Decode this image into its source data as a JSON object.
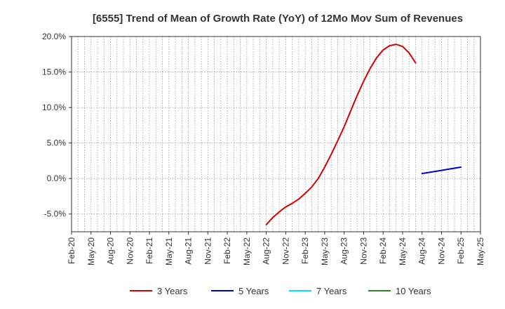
{
  "chart_data": {
    "type": "line",
    "title": "[6555]  Trend of Mean of Growth Rate (YoY) of 12Mo Mov Sum of Revenues",
    "xlabel": "",
    "ylabel": "",
    "ylim": [
      -7.5,
      20.0
    ],
    "y_ticks": [
      20.0,
      15.0,
      10.0,
      5.0,
      0.0,
      -5.0
    ],
    "y_tick_labels": [
      "20.0%",
      "15.0%",
      "10.0%",
      "5.0%",
      "0.0%",
      "-5.0%"
    ],
    "x_tick_labels": [
      "Feb-20",
      "May-20",
      "Aug-20",
      "Nov-20",
      "Feb-21",
      "May-21",
      "Aug-21",
      "Nov-21",
      "Feb-22",
      "May-22",
      "Aug-22",
      "Nov-22",
      "Feb-23",
      "May-23",
      "Aug-23",
      "Nov-23",
      "Feb-24",
      "May-24",
      "Aug-24",
      "Nov-24",
      "Feb-25",
      "May-25"
    ],
    "grid": true,
    "legend_position": "bottom",
    "series": [
      {
        "name": "3 Years",
        "color": "#dd0000",
        "x": [
          30,
          31,
          32,
          33,
          34,
          35,
          36,
          37,
          38,
          39,
          40,
          41,
          42,
          43,
          44,
          45,
          46,
          47,
          48,
          49,
          50,
          51,
          52,
          53,
          54,
          55,
          56,
          57,
          58,
          59,
          60
        ],
        "values": [
          -6.5,
          -5.5,
          -4.7,
          -4.0,
          -3.5,
          -2.9,
          -2.1,
          -1.2,
          0.0,
          1.6,
          3.4,
          5.3,
          7.3,
          9.5,
          11.7,
          13.7,
          15.5,
          17.0,
          18.1,
          18.7,
          18.9,
          18.6,
          17.7,
          16.3,
          null,
          null,
          null,
          null,
          null,
          null,
          null
        ]
      },
      {
        "name": "5 Years",
        "color": "#0000cc",
        "x": [
          54,
          55,
          56,
          57,
          58,
          59,
          60
        ],
        "values": [
          0.7,
          0.85,
          1.0,
          1.15,
          1.3,
          1.45,
          1.6
        ]
      },
      {
        "name": "7 Years",
        "color": "#00e5ee",
        "x": [],
        "values": []
      },
      {
        "name": "10 Years",
        "color": "#228b22",
        "x": [],
        "values": []
      }
    ]
  }
}
